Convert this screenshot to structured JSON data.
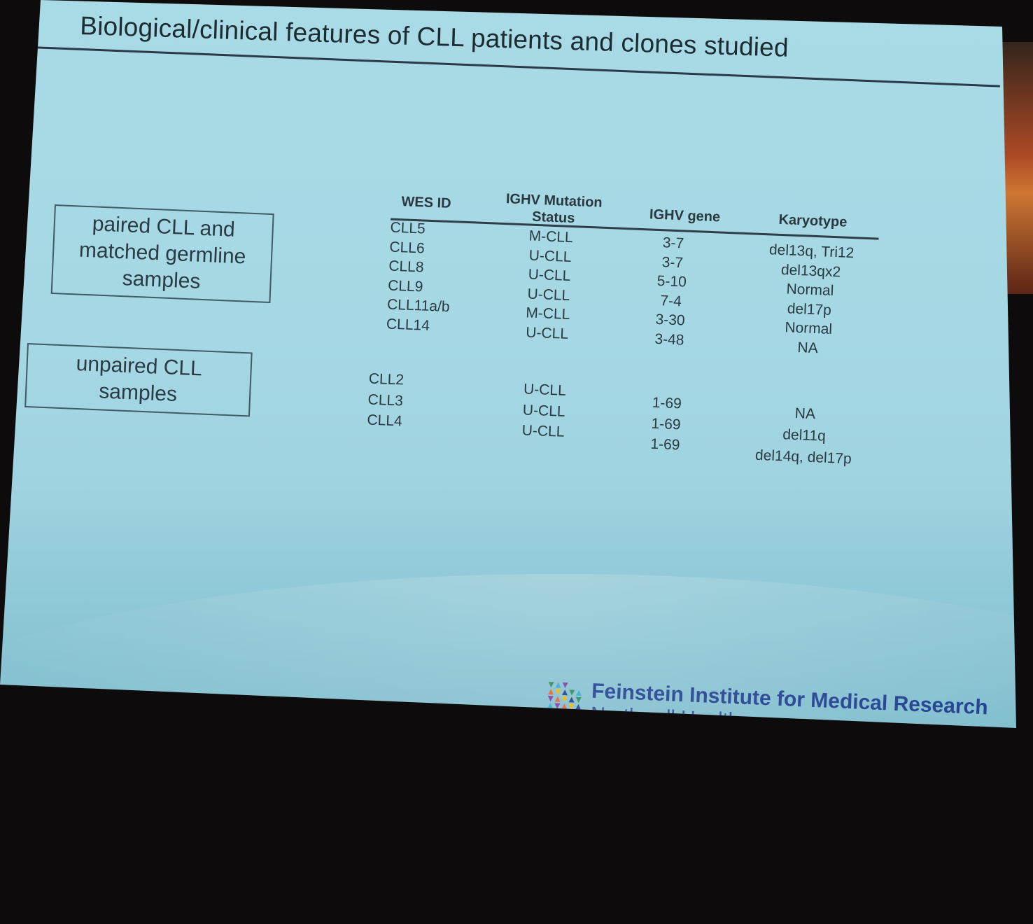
{
  "slide": {
    "title": "Biological/clinical features of CLL patients and clones studied"
  },
  "groups": {
    "paired_label": "paired CLL and matched germline samples",
    "unpaired_label": "unpaired CLL samples"
  },
  "table": {
    "headers": {
      "wes_id": "WES ID",
      "mutation_status": "IGHV Mutation Status",
      "ighv_gene": "IGHV gene",
      "karyotype": "Karyotype"
    },
    "paired": {
      "wes_id": [
        "CLL5",
        "CLL6",
        "CLL8",
        "CLL9",
        "CLL11a/b",
        "CLL14"
      ],
      "mutation_status": [
        "M-CLL",
        "U-CLL",
        "U-CLL",
        "U-CLL",
        "M-CLL",
        "U-CLL"
      ],
      "ighv_gene": [
        "3-7",
        "3-7",
        "5-10",
        "7-4",
        "3-30",
        "3-48"
      ],
      "karyotype": [
        "del13q, Tri12",
        "del13qx2",
        "Normal",
        "del17p",
        "Normal",
        "NA"
      ]
    },
    "unpaired": {
      "wes_id": [
        "CLL2",
        "CLL3",
        "CLL4"
      ],
      "mutation_status": [
        "U-CLL",
        "U-CLL",
        "U-CLL"
      ],
      "ighv_gene": [
        "1-69",
        "1-69",
        "1-69"
      ],
      "karyotype": [
        "NA",
        "del11q",
        "del14q, del17p"
      ]
    }
  },
  "logo": {
    "line1": "Feinstein Institute for Medical Research",
    "line2": "Northwell Health",
    "mark_colors": [
      "#2e8b57",
      "#3fa9c9",
      "#7b3fa0",
      "#e0663a",
      "#f2b705",
      "#1f3f8f"
    ]
  }
}
